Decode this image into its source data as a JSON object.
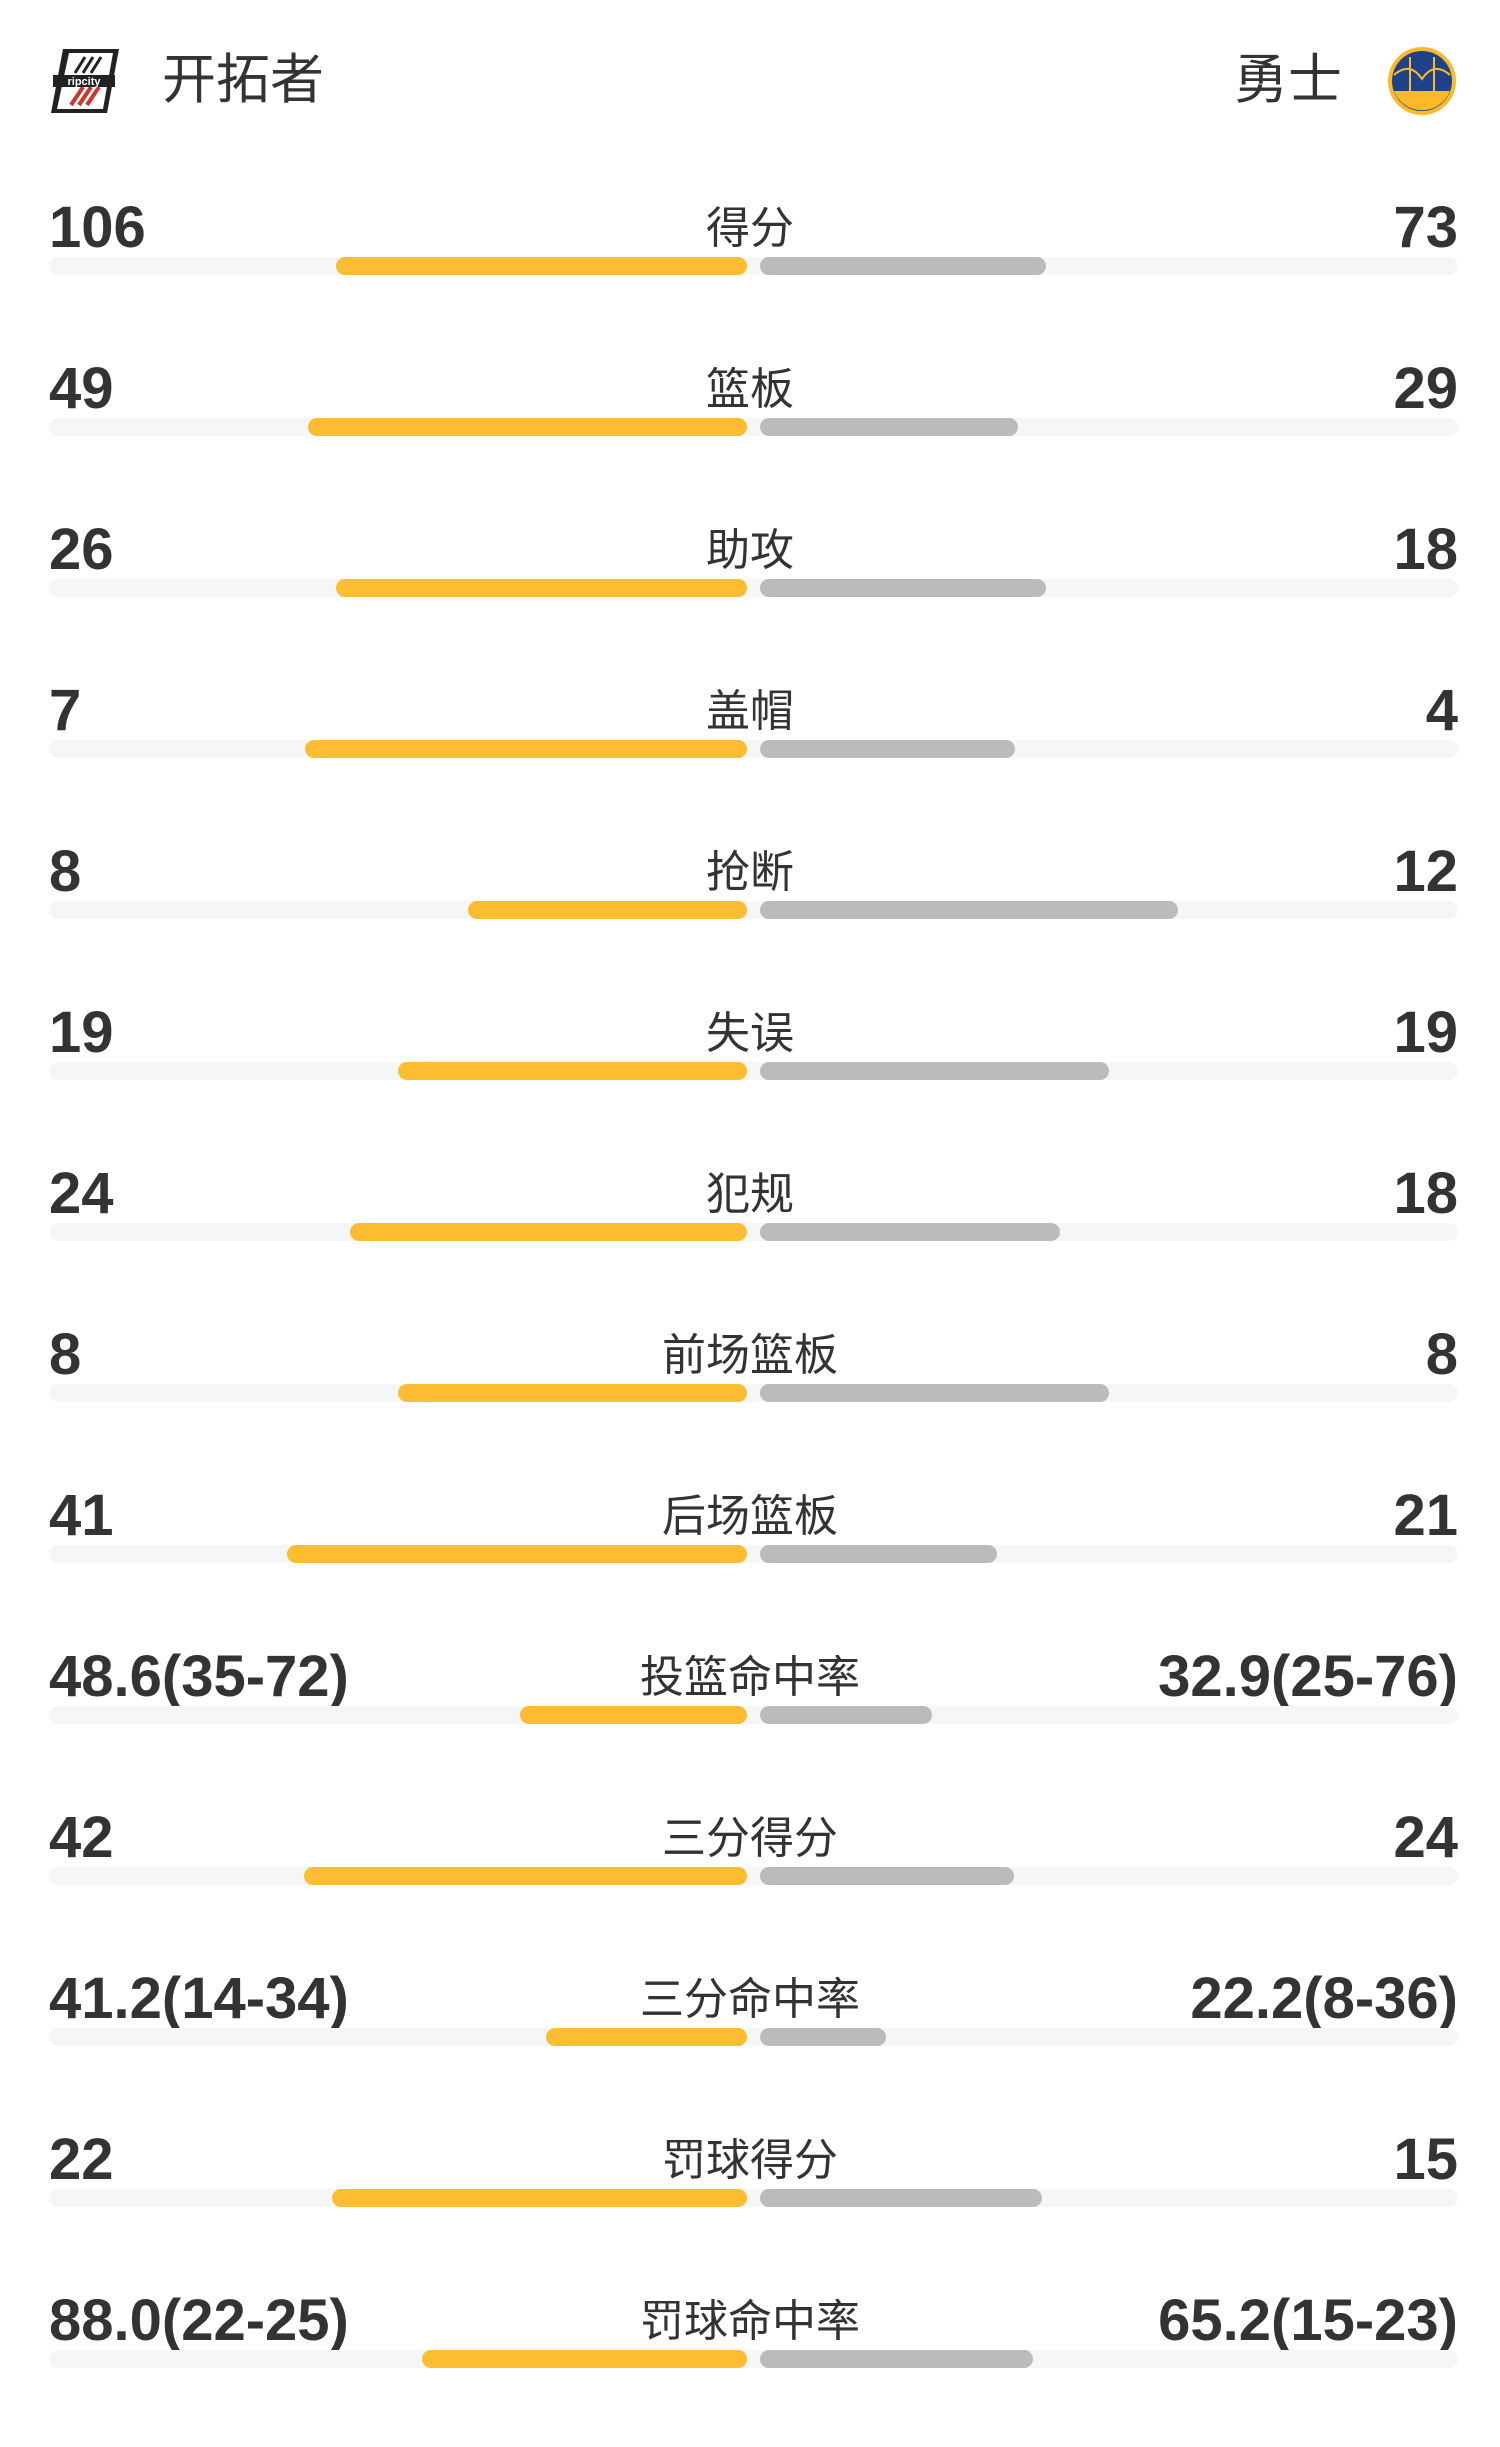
{
  "header": {
    "home_team": "开拓者",
    "away_team": "勇士",
    "home_logo_icon": "trail-blazers-ripcity-logo",
    "away_logo_icon": "warriors-bridge-logo"
  },
  "colors": {
    "home_bar": "#fcbd32",
    "away_bar": "#bbbbbb",
    "track": "#f5f6f8"
  },
  "stats": [
    {
      "label": "得分",
      "home": "106",
      "away": "73",
      "home_fill": 0.59,
      "away_fill": 0.41
    },
    {
      "label": "篮板",
      "home": "49",
      "away": "29",
      "home_fill": 0.63,
      "away_fill": 0.37
    },
    {
      "label": "助攻",
      "home": "26",
      "away": "18",
      "home_fill": 0.59,
      "away_fill": 0.41
    },
    {
      "label": "盖帽",
      "home": "7",
      "away": "4",
      "home_fill": 0.634,
      "away_fill": 0.366
    },
    {
      "label": "抢断",
      "home": "8",
      "away": "12",
      "home_fill": 0.4,
      "away_fill": 0.6
    },
    {
      "label": "失误",
      "home": "19",
      "away": "19",
      "home_fill": 0.5,
      "away_fill": 0.5
    },
    {
      "label": "犯规",
      "home": "24",
      "away": "18",
      "home_fill": 0.57,
      "away_fill": 0.43
    },
    {
      "label": "前场篮板",
      "home": "8",
      "away": "8",
      "home_fill": 0.5,
      "away_fill": 0.5
    },
    {
      "label": "后场篮板",
      "home": "41",
      "away": "21",
      "home_fill": 0.66,
      "away_fill": 0.34
    },
    {
      "label": "投篮命中率",
      "home": "48.6(35-72)",
      "away": "32.9(25-76)",
      "home_fill": 0.326,
      "away_fill": 0.247
    },
    {
      "label": "三分得分",
      "home": "42",
      "away": "24",
      "home_fill": 0.636,
      "away_fill": 0.364
    },
    {
      "label": "三分命中率",
      "home": "41.2(14-34)",
      "away": "22.2(8-36)",
      "home_fill": 0.289,
      "away_fill": 0.181
    },
    {
      "label": "罚球得分",
      "home": "22",
      "away": "15",
      "home_fill": 0.595,
      "away_fill": 0.405
    },
    {
      "label": "罚球命中率",
      "home": "88.0(22-25)",
      "away": "65.2(15-23)",
      "home_fill": 0.467,
      "away_fill": 0.392
    }
  ]
}
